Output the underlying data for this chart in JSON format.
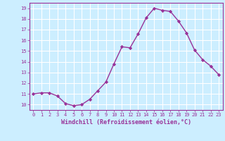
{
  "x": [
    0,
    1,
    2,
    3,
    4,
    5,
    6,
    7,
    8,
    9,
    10,
    11,
    12,
    13,
    14,
    15,
    16,
    17,
    18,
    19,
    20,
    21,
    22,
    23
  ],
  "y": [
    11.0,
    11.1,
    11.1,
    10.8,
    10.1,
    9.9,
    10.0,
    10.5,
    11.3,
    12.1,
    13.8,
    15.4,
    15.3,
    16.6,
    18.1,
    19.0,
    18.8,
    18.7,
    17.8,
    16.7,
    15.1,
    14.2,
    13.6,
    12.8
  ],
  "xlabel": "Windchill (Refroidissement éolien,°C)",
  "ylim": [
    9.5,
    19.5
  ],
  "xlim": [
    -0.5,
    23.5
  ],
  "yticks": [
    10,
    11,
    12,
    13,
    14,
    15,
    16,
    17,
    18,
    19
  ],
  "xticks": [
    0,
    1,
    2,
    3,
    4,
    5,
    6,
    7,
    8,
    9,
    10,
    11,
    12,
    13,
    14,
    15,
    16,
    17,
    18,
    19,
    20,
    21,
    22,
    23
  ],
  "line_color": "#993399",
  "marker": "D",
  "marker_size": 2.2,
  "bg_color": "#cceeff",
  "grid_color": "#ffffff",
  "tick_color": "#993399",
  "label_color": "#993399",
  "line_width": 1.0,
  "tick_fontsize": 5.0,
  "xlabel_fontsize": 6.0
}
